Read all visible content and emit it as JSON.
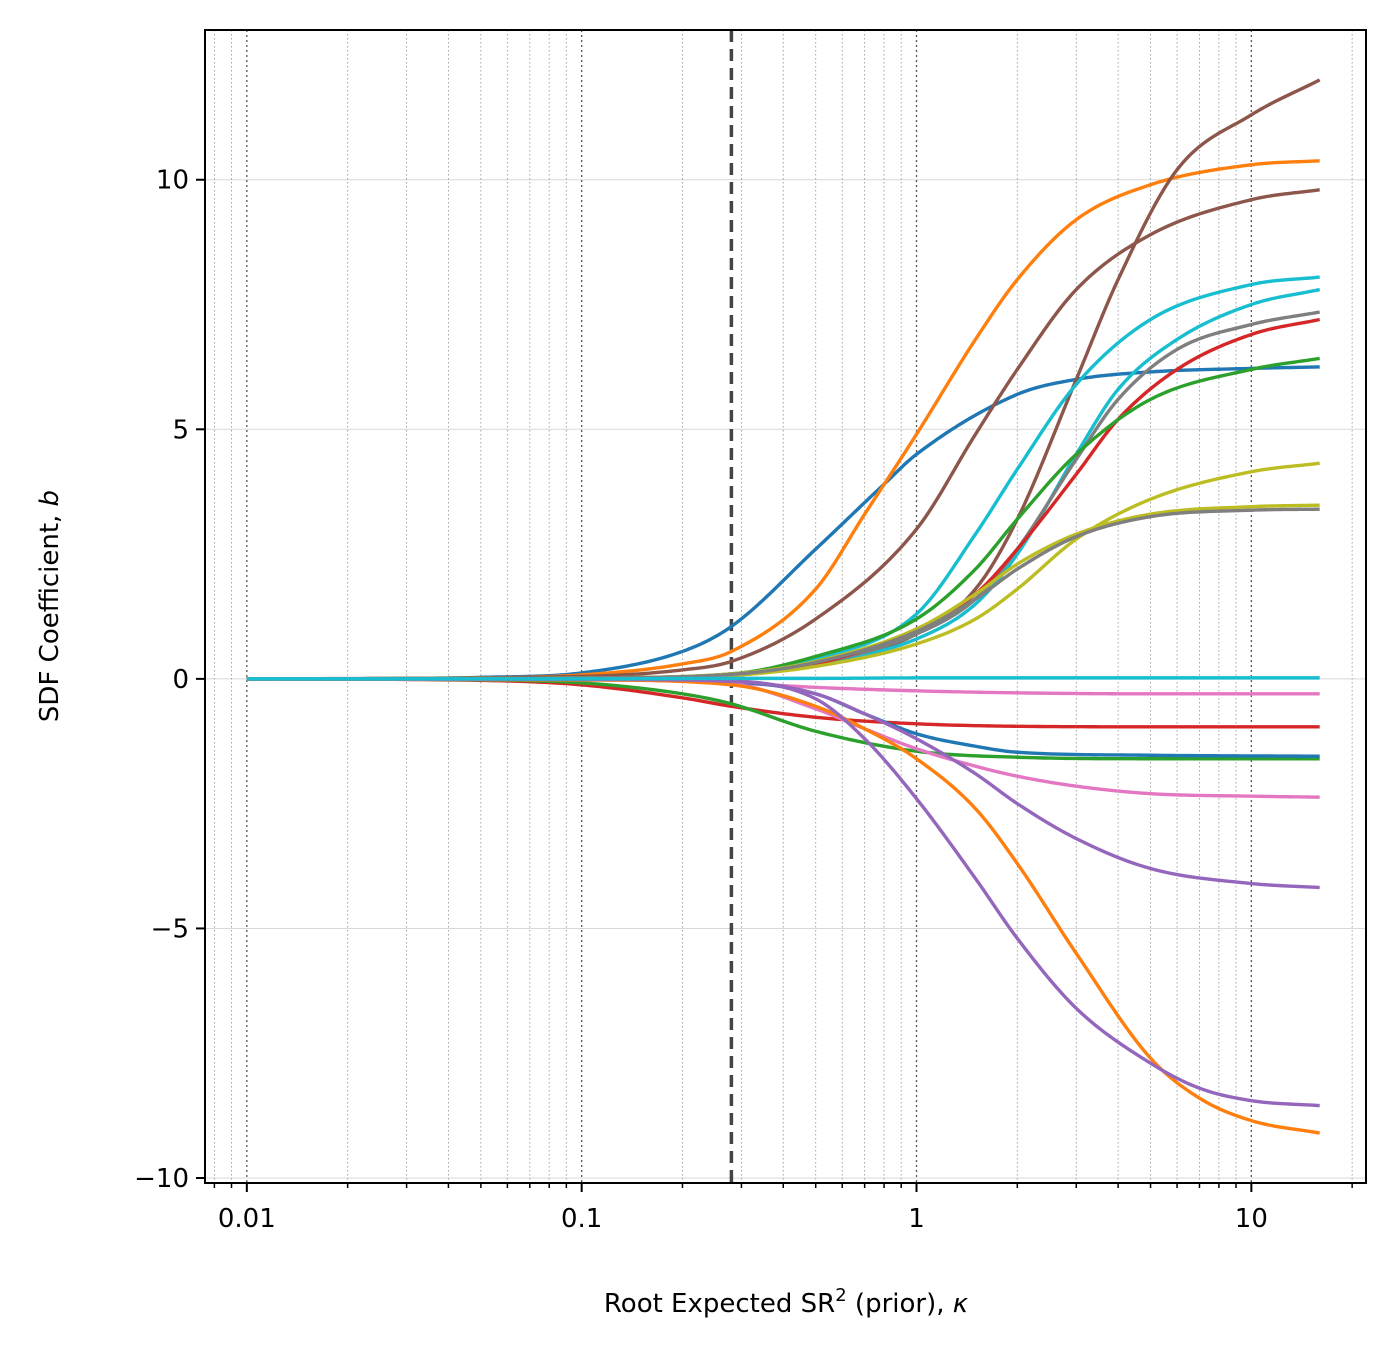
{
  "chart_data": {
    "type": "line",
    "xscale": "log",
    "xlabel": "Root Expected SR² (prior), κ",
    "xlabel_parts": {
      "main": "Root Expected SR",
      "sup": "2",
      "rest": " (prior), ",
      "kappa": "κ"
    },
    "ylabel": "SDF Coefficient, b",
    "ylabel_parts": {
      "main": "SDF Coefficient, ",
      "b": "b"
    },
    "xlim": [
      0.0075,
      22
    ],
    "ylim": [
      -10.1,
      13.0
    ],
    "xticks": [
      {
        "value": 0.01,
        "label": "0.01"
      },
      {
        "value": 0.1,
        "label": "0.1"
      },
      {
        "value": 1,
        "label": "1"
      },
      {
        "value": 10,
        "label": "10"
      }
    ],
    "yticks": [
      {
        "value": 10,
        "label": "10"
      },
      {
        "value": 5,
        "label": "5"
      },
      {
        "value": 0,
        "label": "0"
      },
      {
        "value": -5,
        "label": "−5"
      },
      {
        "value": -10,
        "label": "−10"
      }
    ],
    "grid": "major and minor x, major y",
    "vline": {
      "x": 0.28,
      "style": "dashed"
    },
    "series": [
      {
        "color": "#1f77b4",
        "values": [
          [
            0.01,
            0
          ],
          [
            0.03,
            0.01
          ],
          [
            0.05,
            0.03
          ],
          [
            0.1,
            0.12
          ],
          [
            0.2,
            0.55
          ],
          [
            0.28,
            1.05
          ],
          [
            0.5,
            2.6
          ],
          [
            0.8,
            3.9
          ],
          [
            1,
            4.5
          ],
          [
            2,
            5.7
          ],
          [
            3,
            6.0
          ],
          [
            5,
            6.15
          ],
          [
            10,
            6.22
          ],
          [
            16,
            6.25
          ]
        ]
      },
      {
        "color": "#ff7f0e",
        "values": [
          [
            0.01,
            0
          ],
          [
            0.05,
            0.02
          ],
          [
            0.1,
            0.08
          ],
          [
            0.2,
            0.3
          ],
          [
            0.28,
            0.55
          ],
          [
            0.5,
            1.8
          ],
          [
            0.7,
            3.3
          ],
          [
            1,
            4.9
          ],
          [
            1.5,
            6.8
          ],
          [
            2,
            8.0
          ],
          [
            3,
            9.2
          ],
          [
            5,
            9.9
          ],
          [
            10,
            10.3
          ],
          [
            16,
            10.38
          ]
        ]
      },
      {
        "color": "#8c564b",
        "values": [
          [
            0.01,
            0
          ],
          [
            0.1,
            0.05
          ],
          [
            0.2,
            0.18
          ],
          [
            0.28,
            0.35
          ],
          [
            0.5,
            1.2
          ],
          [
            1,
            3.0
          ],
          [
            1.5,
            4.9
          ],
          [
            2,
            6.2
          ],
          [
            3,
            7.8
          ],
          [
            5,
            8.9
          ],
          [
            10,
            9.6
          ],
          [
            16,
            9.8
          ]
        ]
      },
      {
        "color": "#8c564b",
        "values": [
          [
            0.01,
            0
          ],
          [
            0.1,
            0.01
          ],
          [
            0.28,
            0.08
          ],
          [
            0.5,
            0.3
          ],
          [
            1,
            0.9
          ],
          [
            1.5,
            1.8
          ],
          [
            2,
            3.2
          ],
          [
            3,
            6.0
          ],
          [
            4,
            8.0
          ],
          [
            6,
            10.2
          ],
          [
            10,
            11.3
          ],
          [
            16,
            12.0
          ]
        ]
      },
      {
        "color": "#17becf",
        "values": [
          [
            0.01,
            0
          ],
          [
            0.1,
            0.01
          ],
          [
            0.28,
            0.1
          ],
          [
            0.5,
            0.4
          ],
          [
            1,
            1.3
          ],
          [
            1.5,
            2.9
          ],
          [
            2,
            4.2
          ],
          [
            3,
            5.9
          ],
          [
            5,
            7.2
          ],
          [
            10,
            7.9
          ],
          [
            16,
            8.05
          ]
        ]
      },
      {
        "color": "#17becf",
        "values": [
          [
            0.01,
            0
          ],
          [
            0.1,
            0.01
          ],
          [
            0.28,
            0.08
          ],
          [
            0.5,
            0.3
          ],
          [
            1,
            0.8
          ],
          [
            1.5,
            1.5
          ],
          [
            2,
            2.5
          ],
          [
            3,
            4.5
          ],
          [
            4,
            5.8
          ],
          [
            6,
            6.8
          ],
          [
            10,
            7.5
          ],
          [
            16,
            7.8
          ]
        ]
      },
      {
        "color": "#7f7f7f",
        "values": [
          [
            0.01,
            0
          ],
          [
            0.1,
            0.01
          ],
          [
            0.28,
            0.08
          ],
          [
            0.5,
            0.3
          ],
          [
            1,
            0.9
          ],
          [
            1.5,
            1.6
          ],
          [
            2,
            2.6
          ],
          [
            3,
            4.4
          ],
          [
            4,
            5.6
          ],
          [
            6,
            6.6
          ],
          [
            10,
            7.1
          ],
          [
            16,
            7.35
          ]
        ]
      },
      {
        "color": "#d62728",
        "values": [
          [
            0.01,
            0
          ],
          [
            0.1,
            0.01
          ],
          [
            0.28,
            0.07
          ],
          [
            0.5,
            0.3
          ],
          [
            1,
            1.0
          ],
          [
            1.5,
            1.7
          ],
          [
            2,
            2.6
          ],
          [
            3,
            4.1
          ],
          [
            4,
            5.2
          ],
          [
            6,
            6.2
          ],
          [
            10,
            6.9
          ],
          [
            16,
            7.2
          ]
        ]
      },
      {
        "color": "#2ca02c",
        "values": [
          [
            0.01,
            0
          ],
          [
            0.1,
            0.02
          ],
          [
            0.28,
            0.1
          ],
          [
            0.5,
            0.45
          ],
          [
            1,
            1.2
          ],
          [
            1.5,
            2.2
          ],
          [
            2,
            3.2
          ],
          [
            3,
            4.5
          ],
          [
            5,
            5.6
          ],
          [
            10,
            6.2
          ],
          [
            16,
            6.42
          ]
        ]
      },
      {
        "color": "#bcbd22",
        "values": [
          [
            0.01,
            0
          ],
          [
            0.1,
            0.01
          ],
          [
            0.28,
            0.07
          ],
          [
            0.5,
            0.25
          ],
          [
            1,
            0.7
          ],
          [
            1.5,
            1.2
          ],
          [
            2,
            1.8
          ],
          [
            3,
            2.8
          ],
          [
            5,
            3.6
          ],
          [
            10,
            4.15
          ],
          [
            16,
            4.32
          ]
        ]
      },
      {
        "color": "#bcbd22",
        "values": [
          [
            0.01,
            0
          ],
          [
            0.1,
            0.02
          ],
          [
            0.28,
            0.1
          ],
          [
            0.5,
            0.35
          ],
          [
            1,
            1.0
          ],
          [
            1.5,
            1.7
          ],
          [
            2,
            2.3
          ],
          [
            3,
            2.9
          ],
          [
            5,
            3.3
          ],
          [
            10,
            3.45
          ],
          [
            16,
            3.48
          ]
        ]
      },
      {
        "color": "#7f7f7f",
        "values": [
          [
            0.01,
            0
          ],
          [
            0.1,
            0.02
          ],
          [
            0.28,
            0.09
          ],
          [
            0.5,
            0.33
          ],
          [
            1,
            0.95
          ],
          [
            1.5,
            1.6
          ],
          [
            2,
            2.2
          ],
          [
            3,
            2.85
          ],
          [
            5,
            3.25
          ],
          [
            10,
            3.38
          ],
          [
            16,
            3.4
          ]
        ]
      },
      {
        "color": "#e377c2",
        "values": [
          [
            0.01,
            0
          ],
          [
            0.1,
            -0.01
          ],
          [
            0.28,
            -0.08
          ],
          [
            0.5,
            -0.17
          ],
          [
            1,
            -0.24
          ],
          [
            2,
            -0.28
          ],
          [
            5,
            -0.3
          ],
          [
            16,
            -0.3
          ]
        ]
      },
      {
        "color": "#d62728",
        "values": [
          [
            0.01,
            0
          ],
          [
            0.05,
            -0.03
          ],
          [
            0.1,
            -0.12
          ],
          [
            0.2,
            -0.38
          ],
          [
            0.28,
            -0.55
          ],
          [
            0.5,
            -0.77
          ],
          [
            1,
            -0.9
          ],
          [
            2,
            -0.95
          ],
          [
            5,
            -0.96
          ],
          [
            16,
            -0.96
          ]
        ]
      },
      {
        "color": "#2ca02c",
        "values": [
          [
            0.01,
            0
          ],
          [
            0.05,
            -0.02
          ],
          [
            0.1,
            -0.08
          ],
          [
            0.2,
            -0.3
          ],
          [
            0.28,
            -0.5
          ],
          [
            0.5,
            -1.05
          ],
          [
            1,
            -1.45
          ],
          [
            2,
            -1.57
          ],
          [
            5,
            -1.6
          ],
          [
            16,
            -1.6
          ]
        ]
      },
      {
        "color": "#1f77b4",
        "values": [
          [
            0.01,
            0
          ],
          [
            0.1,
            -0.01
          ],
          [
            0.28,
            -0.06
          ],
          [
            0.5,
            -0.3
          ],
          [
            0.7,
            -0.7
          ],
          [
            1,
            -1.1
          ],
          [
            1.5,
            -1.35
          ],
          [
            2,
            -1.47
          ],
          [
            5,
            -1.53
          ],
          [
            16,
            -1.55
          ]
        ]
      },
      {
        "color": "#e377c2",
        "values": [
          [
            0.01,
            0
          ],
          [
            0.1,
            -0.02
          ],
          [
            0.28,
            -0.1
          ],
          [
            0.5,
            -0.6
          ],
          [
            0.7,
            -1.0
          ],
          [
            1,
            -1.4
          ],
          [
            1.5,
            -1.75
          ],
          [
            2,
            -1.95
          ],
          [
            3,
            -2.15
          ],
          [
            5,
            -2.3
          ],
          [
            10,
            -2.35
          ],
          [
            16,
            -2.37
          ]
        ]
      },
      {
        "color": "#9467bd",
        "values": [
          [
            0.01,
            0
          ],
          [
            0.1,
            -0.01
          ],
          [
            0.28,
            -0.04
          ],
          [
            0.5,
            -0.3
          ],
          [
            0.7,
            -0.7
          ],
          [
            1,
            -1.2
          ],
          [
            1.5,
            -1.9
          ],
          [
            2,
            -2.5
          ],
          [
            3,
            -3.2
          ],
          [
            5,
            -3.8
          ],
          [
            10,
            -4.1
          ],
          [
            16,
            -4.18
          ]
        ]
      },
      {
        "color": "#ff7f0e",
        "values": [
          [
            0.01,
            0
          ],
          [
            0.1,
            -0.02
          ],
          [
            0.28,
            -0.12
          ],
          [
            0.5,
            -0.55
          ],
          [
            0.7,
            -1.0
          ],
          [
            1,
            -1.6
          ],
          [
            1.5,
            -2.6
          ],
          [
            2,
            -3.7
          ],
          [
            3,
            -5.5
          ],
          [
            5,
            -7.6
          ],
          [
            7,
            -8.4
          ],
          [
            10,
            -8.85
          ],
          [
            16,
            -9.1
          ]
        ]
      },
      {
        "color": "#9467bd",
        "values": [
          [
            0.01,
            0
          ],
          [
            0.1,
            -0.01
          ],
          [
            0.28,
            -0.05
          ],
          [
            0.5,
            -0.4
          ],
          [
            0.7,
            -1.2
          ],
          [
            1,
            -2.4
          ],
          [
            1.5,
            -4.0
          ],
          [
            2,
            -5.2
          ],
          [
            3,
            -6.6
          ],
          [
            5,
            -7.7
          ],
          [
            7,
            -8.2
          ],
          [
            10,
            -8.45
          ],
          [
            16,
            -8.55
          ]
        ]
      },
      {
        "color": "#17becf",
        "values": [
          [
            0.01,
            0
          ],
          [
            0.1,
            0
          ],
          [
            0.28,
            0.01
          ],
          [
            0.5,
            0.01
          ],
          [
            1,
            0.02
          ],
          [
            16,
            0.02
          ]
        ]
      }
    ]
  }
}
